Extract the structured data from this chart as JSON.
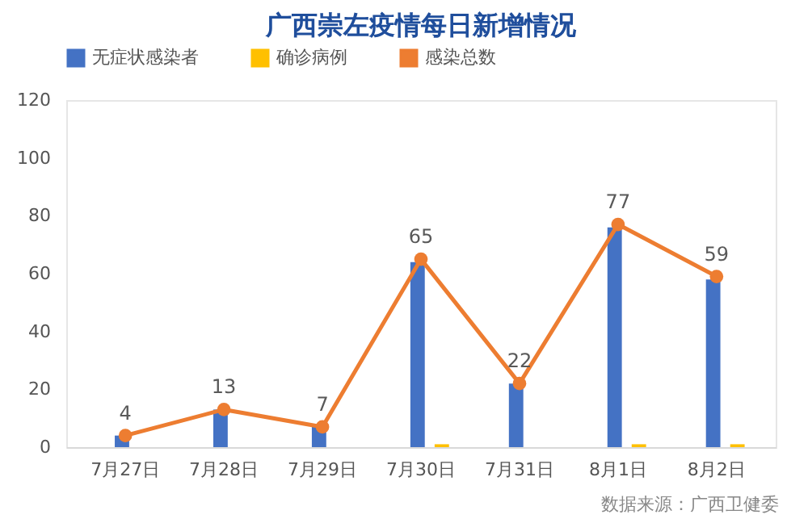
{
  "chart_data": {
    "type": "bar",
    "title": "广西崇左疫情每日新增情况",
    "categories": [
      "7月27日",
      "7月28日",
      "7月29日",
      "7月30日",
      "7月31日",
      "8月1日",
      "8月2日"
    ],
    "series": [
      {
        "name": "无症状感染者",
        "color": "#4472c4",
        "values": [
          4,
          13,
          7,
          64,
          22,
          76,
          58
        ]
      },
      {
        "name": "确诊病例",
        "color": "#ffc000",
        "values": [
          0,
          0,
          0,
          1,
          0,
          1,
          1
        ]
      },
      {
        "name": "感染总数",
        "type": "line",
        "color": "#ed7d31",
        "values": [
          4,
          13,
          7,
          65,
          22,
          77,
          59
        ],
        "value_labels": [
          "4",
          "13",
          "7",
          "65",
          "22",
          "77",
          "59"
        ]
      }
    ],
    "ylim": [
      0,
      120
    ],
    "yticks": [
      0,
      20,
      40,
      60,
      80,
      100,
      120
    ],
    "grid": false,
    "legend": "top",
    "marker": "circle",
    "annotations": [
      "数据来源：广西卫健委"
    ]
  }
}
